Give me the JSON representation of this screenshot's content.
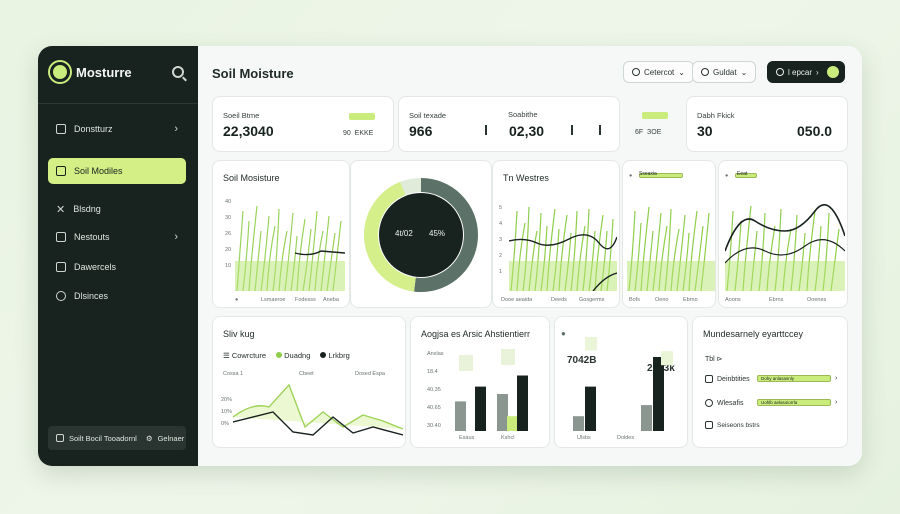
{
  "sidebar": {
    "brand": "Mosturre",
    "items": [
      {
        "label": "Donstturz"
      },
      {
        "label": "Soil Modiles"
      },
      {
        "label": "Blsdng"
      },
      {
        "label": "Nestouts"
      },
      {
        "label": "Dawercels"
      },
      {
        "label": "Dlsinces"
      }
    ],
    "footer": "Soilt Bocil Tooadornl",
    "footer_secondary": "Gelnaer"
  },
  "header": {
    "title": "Soil Moisture",
    "btn1": "Cetercot",
    "btn2": "Guldat",
    "btn3": "l epcar"
  },
  "kpis": [
    {
      "label": "Soeil Btme",
      "value": "22,3040",
      "sub": "90  EKKE"
    },
    {
      "label": "Soil texade",
      "value": "966",
      "value2": "02,30",
      "sub": "6F  ЗOE"
    },
    {
      "label": "Soabithe",
      "value": "",
      "sub": ""
    },
    {
      "label": "Dabh Fkick",
      "value": "30",
      "value2": "050.0",
      "sub": ""
    }
  ],
  "soil_card": {
    "title": "Soil Mosisture",
    "y_ticks": [
      "40",
      "30",
      "26",
      "20",
      "10"
    ],
    "x_ticks": [
      "Lsmaeroe",
      "Fodesss",
      "Aneba"
    ]
  },
  "donut": {
    "left_label": "4t/02",
    "right_label": "45%",
    "dark_pct": 0.52,
    "light_pct": 0.42
  },
  "trend_card": {
    "title": "Tn Westres",
    "y_ticks": [
      "5",
      "4",
      "3",
      "2",
      "1"
    ],
    "x_ticks": [
      "Dooe aeaida",
      "Deeds",
      "Gosgerms"
    ]
  },
  "mini_cards": [
    {
      "label": "Sseaxia",
      "x_ticks": [
        "Bofs",
        "Oeno",
        "Ebrno"
      ]
    },
    {
      "label": "Eeat",
      "x_ticks": [
        "Aoons",
        "Ebrns",
        "Ooenes"
      ]
    }
  ],
  "bottom_left": {
    "title": "Sliv kug",
    "legend": [
      "Cowrcture",
      "Duadng",
      "Lrkbrg"
    ],
    "sublabels": [
      "Cossa 1",
      "Cbeet",
      "Dosed Espa"
    ],
    "y_ticks": [
      "20%",
      "10%",
      "0%"
    ]
  },
  "bottom_mid": {
    "title": "Aogjsa es Arsic Ahstientierr",
    "y_ticks": [
      "Anxlas",
      "18.4",
      "40.35",
      "40.65",
      "30.40"
    ],
    "x_ticks": [
      "Esaus",
      "Kshcl"
    ],
    "bars": [
      [
        40,
        0,
        60
      ],
      [
        50,
        20,
        75
      ]
    ]
  },
  "bottom_mid2": {
    "value1": "7042B",
    "value2": "2013k",
    "bars": [
      [
        20,
        60,
        90
      ],
      [
        35,
        100,
        70
      ]
    ],
    "x_ticks": [
      "Ulsbs",
      "Doldes"
    ]
  },
  "bottom_right": {
    "title": "Mundesarnely eyarttccey",
    "items": [
      {
        "label": "Tbl ⊳"
      },
      {
        "label": "Deinbtities",
        "pill": "Dohy anlasasnly"
      },
      {
        "label": "Wlesafis",
        "pill": "Uohlb aelasoiorrla"
      },
      {
        "label": "Seiseons bstrs"
      }
    ]
  },
  "colors": {
    "sidebar_bg": "#18221f",
    "accent": "#c9ec7d",
    "dark": "#18221f",
    "gray": "#8a968f"
  }
}
